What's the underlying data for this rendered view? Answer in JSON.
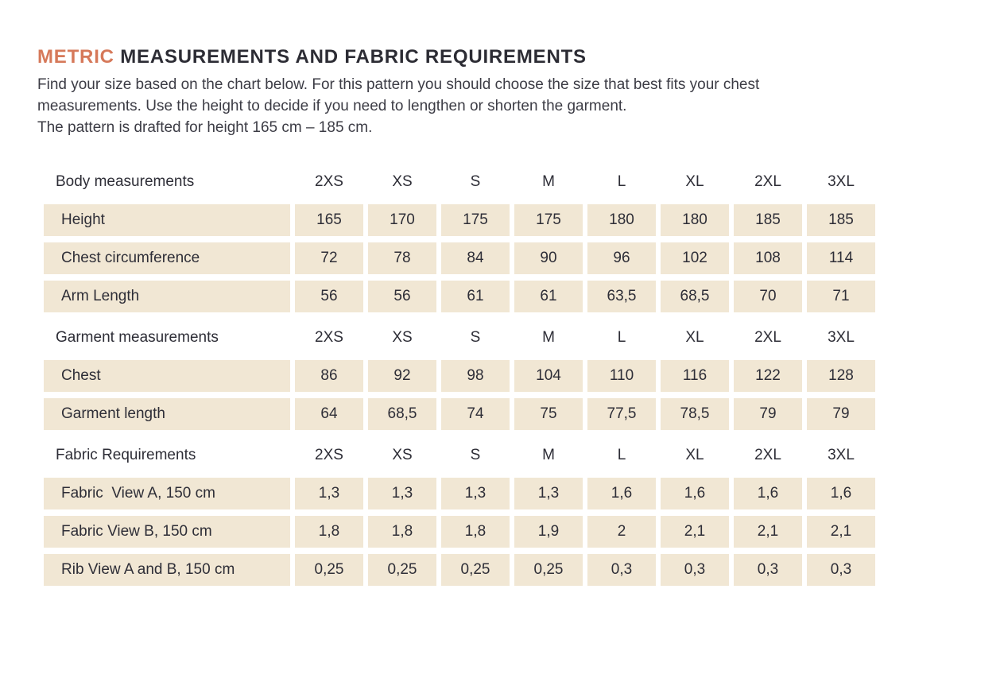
{
  "page": {
    "title": {
      "highlight": "METRIC",
      "rest": "MEASUREMENTS AND FABRIC REQUIREMENTS"
    },
    "intro": {
      "line1": "Find your size based on the chart below. For this pattern you should choose the size that best fits your chest",
      "line2": "measurements. Use the height to decide if you need to lengthen or shorten the garment.",
      "line3": "The pattern is drafted for height 165 cm – 185 cm."
    }
  },
  "colors": {
    "accent_orange": "#d6795a",
    "row_beige": "#f1e7d4",
    "text_dark": "#2e2e37"
  },
  "table": {
    "sizes": [
      "2XS",
      "XS",
      "S",
      "M",
      "L",
      "XL",
      "2XL",
      "3XL"
    ],
    "sections": [
      {
        "header": "Body measurements",
        "rows": [
          {
            "label": "Height",
            "values": [
              "165",
              "170",
              "175",
              "175",
              "180",
              "180",
              "185",
              "185"
            ]
          },
          {
            "label": "Chest circumference",
            "values": [
              "72",
              "78",
              "84",
              "90",
              "96",
              "102",
              "108",
              "114"
            ]
          },
          {
            "label": "Arm Length",
            "values": [
              "56",
              "56",
              "61",
              "61",
              "63,5",
              "68,5",
              "70",
              "71"
            ]
          }
        ]
      },
      {
        "header": "Garment measurements",
        "rows": [
          {
            "label": "Chest",
            "values": [
              "86",
              "92",
              "98",
              "104",
              "110",
              "116",
              "122",
              "128"
            ]
          },
          {
            "label": "Garment length",
            "values": [
              "64",
              "68,5",
              "74",
              "75",
              "77,5",
              "78,5",
              "79",
              "79"
            ]
          }
        ]
      },
      {
        "header": "Fabric Requirements",
        "rows": [
          {
            "label": "Fabric  View A, 150 cm",
            "values": [
              "1,3",
              "1,3",
              "1,3",
              "1,3",
              "1,6",
              "1,6",
              "1,6",
              "1,6"
            ]
          },
          {
            "label": "Fabric View B, 150 cm",
            "values": [
              "1,8",
              "1,8",
              "1,8",
              "1,9",
              "2",
              "2,1",
              "2,1",
              "2,1"
            ]
          },
          {
            "label": "Rib View A and B, 150 cm",
            "values": [
              "0,25",
              "0,25",
              "0,25",
              "0,25",
              "0,3",
              "0,3",
              "0,3",
              "0,3"
            ]
          }
        ]
      }
    ]
  }
}
